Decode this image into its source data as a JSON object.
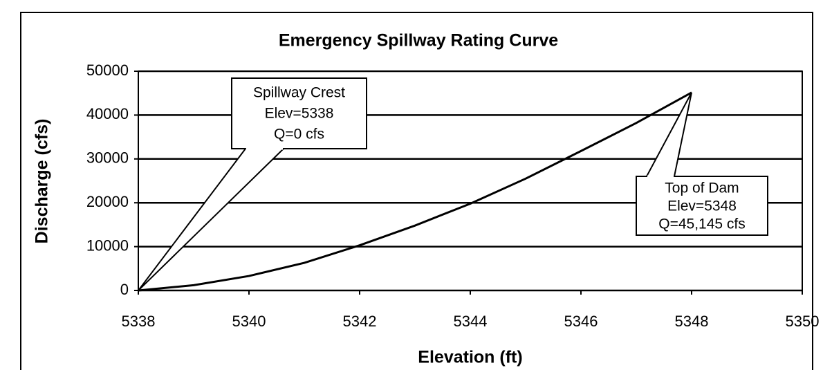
{
  "chart_data": {
    "type": "line",
    "title": "Emergency Spillway Rating Curve",
    "x_label": "Elevation (ft)",
    "y_label": "Discharge (cfs)",
    "x": [
      5338,
      5339,
      5340,
      5341,
      5342,
      5343,
      5344,
      5345,
      5346,
      5347,
      5348
    ],
    "series": [
      {
        "name": "Rating Curve",
        "color": "#000000",
        "values": [
          0,
          1200,
          3300,
          6300,
          10300,
          14800,
          19800,
          25500,
          31800,
          38200,
          45145
        ]
      }
    ],
    "xlim": [
      5338,
      5350
    ],
    "xticks": [
      5338,
      5340,
      5342,
      5344,
      5346,
      5348,
      5350
    ],
    "ylim": [
      0,
      50000
    ],
    "yticks": [
      0,
      10000,
      20000,
      30000,
      40000,
      50000
    ],
    "grid": true,
    "legend": false,
    "annotations": [
      {
        "lines": [
          "Spillway Crest",
          "Elev=5338",
          "Q=0 cfs"
        ]
      },
      {
        "lines": [
          "Top of Dam",
          "Elev=5348",
          "Q=45,145 cfs"
        ]
      }
    ]
  }
}
